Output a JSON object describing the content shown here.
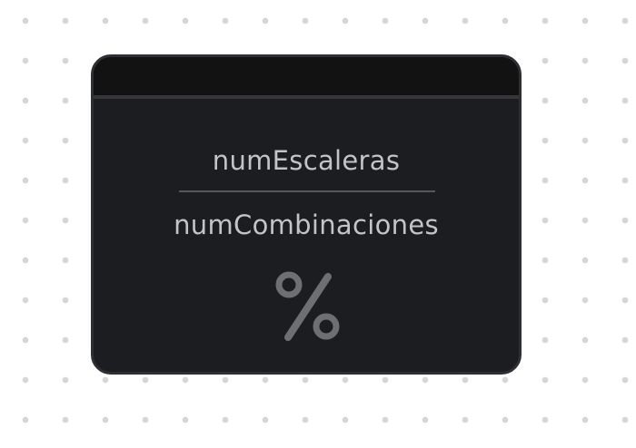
{
  "node": {
    "numerator": "numEscaleras",
    "denominator": "numCombinaciones",
    "icon": "percent-icon"
  },
  "colors": {
    "canvas_background": "#ffffff",
    "grid_dot": "#d6d6d6",
    "node_body": "#1c1d20",
    "node_header": "#121212",
    "node_border": "#2e2f33",
    "text": "#c4c4c6",
    "icon": "#6e6f73"
  }
}
